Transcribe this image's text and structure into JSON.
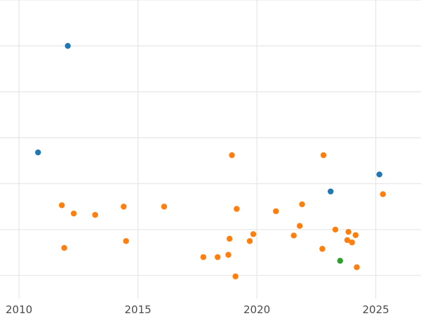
{
  "chart_data": {
    "type": "scatter",
    "title": "",
    "xlabel": "",
    "ylabel": "",
    "xlim": [
      2009.2,
      2026.9
    ],
    "ylim": [
      0,
      6.5
    ],
    "x_ticks": [
      2010,
      2015,
      2020,
      2025
    ],
    "x_tick_labels": [
      "2010",
      "2015",
      "2020",
      "2025"
    ],
    "y_gridlines": [
      0.5,
      1.5,
      2.5,
      3.5,
      4.5,
      5.5,
      6.5
    ],
    "grid": true,
    "legend": "none",
    "series": [
      {
        "color": "#1f77b4",
        "points": [
          {
            "x": 2012.05,
            "y": 5.5
          },
          {
            "x": 2010.8,
            "y": 3.18
          },
          {
            "x": 2025.15,
            "y": 2.7
          },
          {
            "x": 2023.1,
            "y": 2.33
          }
        ]
      },
      {
        "color": "#ff7f0e",
        "points": [
          {
            "x": 2018.95,
            "y": 3.12
          },
          {
            "x": 2022.8,
            "y": 3.12
          },
          {
            "x": 2025.3,
            "y": 2.27
          },
          {
            "x": 2011.8,
            "y": 2.03
          },
          {
            "x": 2012.3,
            "y": 1.85
          },
          {
            "x": 2013.2,
            "y": 1.82
          },
          {
            "x": 2014.4,
            "y": 2.0
          },
          {
            "x": 2016.1,
            "y": 2.0
          },
          {
            "x": 2019.15,
            "y": 1.95
          },
          {
            "x": 2020.8,
            "y": 1.9
          },
          {
            "x": 2021.9,
            "y": 2.05
          },
          {
            "x": 2021.8,
            "y": 1.58
          },
          {
            "x": 2023.3,
            "y": 1.5
          },
          {
            "x": 2023.85,
            "y": 1.45
          },
          {
            "x": 2024.15,
            "y": 1.38
          },
          {
            "x": 2019.85,
            "y": 1.4
          },
          {
            "x": 2021.55,
            "y": 1.37
          },
          {
            "x": 2018.85,
            "y": 1.3
          },
          {
            "x": 2019.7,
            "y": 1.25
          },
          {
            "x": 2023.8,
            "y": 1.27
          },
          {
            "x": 2024.0,
            "y": 1.22
          },
          {
            "x": 2011.9,
            "y": 1.1
          },
          {
            "x": 2014.5,
            "y": 1.25
          },
          {
            "x": 2022.75,
            "y": 1.08
          },
          {
            "x": 2017.75,
            "y": 0.9
          },
          {
            "x": 2018.35,
            "y": 0.9
          },
          {
            "x": 2018.8,
            "y": 0.95
          },
          {
            "x": 2024.2,
            "y": 0.68
          },
          {
            "x": 2019.1,
            "y": 0.48
          }
        ]
      },
      {
        "color": "#2ca02c",
        "points": [
          {
            "x": 2023.5,
            "y": 0.82
          }
        ]
      }
    ]
  }
}
